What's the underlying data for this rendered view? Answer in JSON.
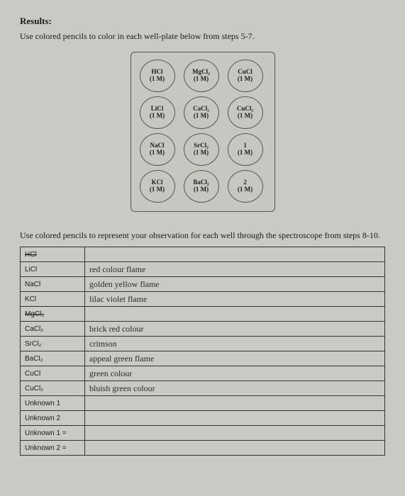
{
  "heading": "Results:",
  "instruction1": "Use colored pencils to color in each well-plate below from steps 5-7.",
  "plate": [
    [
      {
        "f": "HCl",
        "m": "(1 M)"
      },
      {
        "f": "MgCl₂",
        "m": "(1 M)"
      },
      {
        "f": "CuCl",
        "m": "(1 M)"
      }
    ],
    [
      {
        "f": "LiCl",
        "m": "(1 M)"
      },
      {
        "f": "CaCl₂",
        "m": "(1 M)"
      },
      {
        "f": "CuCl₂",
        "m": "(1 M)"
      }
    ],
    [
      {
        "f": "NaCl",
        "m": "(1 M)"
      },
      {
        "f": "SrCl₂",
        "m": "(1 M)"
      },
      {
        "f": "1",
        "m": "(1 M)"
      }
    ],
    [
      {
        "f": "KCl",
        "m": "(1 M)"
      },
      {
        "f": "BaCl₂",
        "m": "(1 M)"
      },
      {
        "f": "2",
        "m": "(1 M)"
      }
    ]
  ],
  "instruction2": "Use colored pencils to represent your observation for each well through the spectroscope from steps 8-10.",
  "rows": [
    {
      "label": "HCl",
      "obs": "",
      "strike": true
    },
    {
      "label": "LiCl",
      "obs": "red colour flame"
    },
    {
      "label": "NaCl",
      "obs": "golden yellow flame"
    },
    {
      "label": "KCl",
      "obs": "lilac violet flame"
    },
    {
      "label": "MgCl₂",
      "obs": "",
      "strike": true
    },
    {
      "label": "CaCl₂",
      "obs": "brick red colour"
    },
    {
      "label": "SrCl₂",
      "obs": "crimson"
    },
    {
      "label": "BaCl₂",
      "obs": "appeal green flame"
    },
    {
      "label": "CuCl",
      "obs": "green colour"
    },
    {
      "label": "CuCl₂",
      "obs": "bluish green colour"
    },
    {
      "label": "Unknown 1",
      "obs": ""
    },
    {
      "label": "Unknown 2",
      "obs": ""
    },
    {
      "label": "Unknown 1 =",
      "obs": ""
    },
    {
      "label": "Unknown 2 =",
      "obs": ""
    }
  ]
}
